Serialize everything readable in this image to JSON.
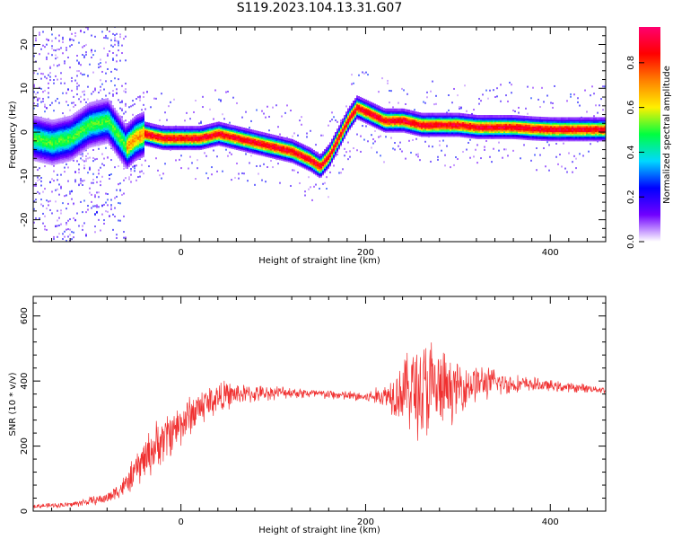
{
  "title": "S119.2023.104.13.31.G07",
  "chart_data": [
    {
      "type": "heatmap",
      "xlabel": "Height of straight line (km)",
      "ylabel": "Frequency (Hz)",
      "xlim": [
        -160,
        460
      ],
      "ylim": [
        -25,
        24
      ],
      "xticks": [
        0,
        200,
        400
      ],
      "yticks": [
        -20,
        -10,
        0,
        10,
        20
      ],
      "colorbar": {
        "label": "Normalized spectral amplitude",
        "range": [
          0,
          0.96
        ],
        "ticks": [
          0.0,
          0.2,
          0.4,
          0.6,
          0.8
        ],
        "colors": [
          "#ffffff",
          "#7000ff",
          "#0000ff",
          "#00d8ff",
          "#00ff40",
          "#fff000",
          "#ff8000",
          "#ff0000",
          "#ff0070"
        ]
      },
      "ridge": {
        "x": [
          -160,
          -140,
          -120,
          -100,
          -80,
          -70,
          -60,
          -50,
          -40,
          -20,
          0,
          20,
          40,
          60,
          80,
          100,
          120,
          140,
          150,
          160,
          170,
          180,
          190,
          200,
          220,
          240,
          260,
          280,
          300,
          320,
          340,
          360,
          380,
          400,
          420,
          440,
          460
        ],
        "y": [
          -1,
          -2,
          -1,
          2,
          3,
          0,
          -3,
          -1,
          0,
          -1,
          -1,
          -1,
          0,
          -1,
          -2,
          -3,
          -4,
          -6,
          -7.5,
          -5,
          -1,
          3,
          6,
          5,
          3,
          3,
          2,
          2,
          2,
          1.5,
          1.5,
          1.5,
          1.2,
          1,
          1,
          1,
          1
        ],
        "peak_amplitude": 0.96
      }
    },
    {
      "type": "line",
      "xlabel": "Height of straight line (km)",
      "ylabel": "SNR (10 * v/v)",
      "xlim": [
        -160,
        460
      ],
      "ylim": [
        0,
        660
      ],
      "xticks": [
        0,
        200,
        400
      ],
      "yticks": [
        0,
        200,
        400,
        600
      ],
      "color": "#f03030",
      "envelope": {
        "x": [
          -160,
          -120,
          -100,
          -80,
          -60,
          -50,
          -40,
          -20,
          0,
          20,
          40,
          60,
          80,
          100,
          120,
          150,
          180,
          200,
          220,
          240,
          250,
          260,
          270,
          280,
          290,
          300,
          320,
          340,
          360,
          380,
          400,
          420,
          440,
          460
        ],
        "mean": [
          15,
          20,
          30,
          40,
          80,
          120,
          160,
          220,
          270,
          320,
          350,
          360,
          360,
          365,
          365,
          360,
          355,
          350,
          355,
          370,
          380,
          370,
          370,
          370,
          370,
          380,
          395,
          395,
          390,
          390,
          385,
          380,
          378,
          372
        ],
        "spread": [
          8,
          10,
          15,
          20,
          40,
          60,
          80,
          90,
          80,
          70,
          60,
          40,
          30,
          25,
          20,
          18,
          18,
          20,
          40,
          120,
          160,
          200,
          200,
          160,
          120,
          90,
          70,
          50,
          35,
          25,
          20,
          18,
          15,
          12
        ]
      }
    }
  ]
}
